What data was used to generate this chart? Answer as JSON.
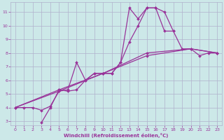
{
  "xlabel": "Windchill (Refroidissement éolien,°C)",
  "xlim": [
    -0.5,
    23.5
  ],
  "ylim": [
    2.7,
    11.7
  ],
  "xticks": [
    0,
    1,
    2,
    3,
    4,
    5,
    6,
    7,
    8,
    9,
    10,
    11,
    12,
    13,
    14,
    15,
    16,
    17,
    18,
    19,
    20,
    21,
    22,
    23
  ],
  "yticks": [
    3,
    4,
    5,
    6,
    7,
    8,
    9,
    10,
    11
  ],
  "bg_color": "#cce8e8",
  "grid_color": "#b0b0cc",
  "line_color": "#993399",
  "line_width": 0.9,
  "marker_size": 6,
  "lines": [
    [
      [
        0,
        4
      ],
      [
        1,
        4
      ],
      [
        2,
        4
      ],
      [
        3,
        3.8
      ],
      [
        4,
        4.1
      ],
      [
        5,
        5.2
      ],
      [
        6,
        5.3
      ],
      [
        7,
        7.3
      ],
      [
        8,
        6.0
      ],
      [
        9,
        6.5
      ],
      [
        10,
        6.5
      ],
      [
        11,
        6.5
      ],
      [
        12,
        7.3
      ],
      [
        13,
        11.3
      ],
      [
        14,
        10.5
      ],
      [
        15,
        11.3
      ],
      [
        16,
        11.3
      ],
      [
        17,
        11.0
      ],
      [
        18,
        9.6
      ]
    ],
    [
      [
        3,
        2.9
      ],
      [
        4,
        4.0
      ],
      [
        5,
        5.3
      ],
      [
        6,
        5.2
      ],
      [
        7,
        5.3
      ],
      [
        8,
        6.0
      ],
      [
        9,
        6.5
      ],
      [
        10,
        6.5
      ],
      [
        11,
        6.5
      ],
      [
        12,
        7.3
      ],
      [
        13,
        8.8
      ],
      [
        14,
        10.0
      ],
      [
        15,
        11.3
      ],
      [
        16,
        11.3
      ],
      [
        17,
        9.6
      ],
      [
        18,
        9.6
      ],
      [
        19,
        8.3
      ],
      [
        20,
        8.3
      ],
      [
        21,
        7.8
      ],
      [
        22,
        8.0
      ],
      [
        23,
        8.0
      ]
    ],
    [
      [
        0,
        4
      ],
      [
        5,
        5.2
      ],
      [
        10,
        6.5
      ],
      [
        15,
        7.8
      ],
      [
        20,
        8.3
      ],
      [
        23,
        8.0
      ]
    ],
    [
      [
        0,
        4
      ],
      [
        5,
        5.3
      ],
      [
        10,
        6.5
      ],
      [
        15,
        8.0
      ],
      [
        20,
        8.3
      ],
      [
        23,
        8.0
      ]
    ]
  ]
}
